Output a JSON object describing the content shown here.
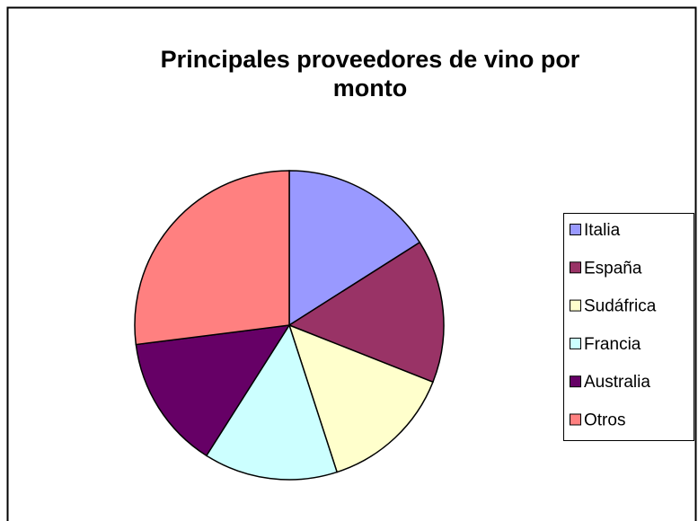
{
  "chart_data": {
    "type": "pie",
    "title": "Principales proveedores de vino por monto",
    "categories": [
      "Italia",
      "España",
      "Sudáfrica",
      "Francia",
      "Australia",
      "Otros"
    ],
    "values": [
      16,
      15,
      14,
      14,
      14,
      27
    ],
    "colors": [
      "#9999ff",
      "#993366",
      "#ffffcc",
      "#ccffff",
      "#660066",
      "#ff8080"
    ],
    "legend": "right"
  }
}
